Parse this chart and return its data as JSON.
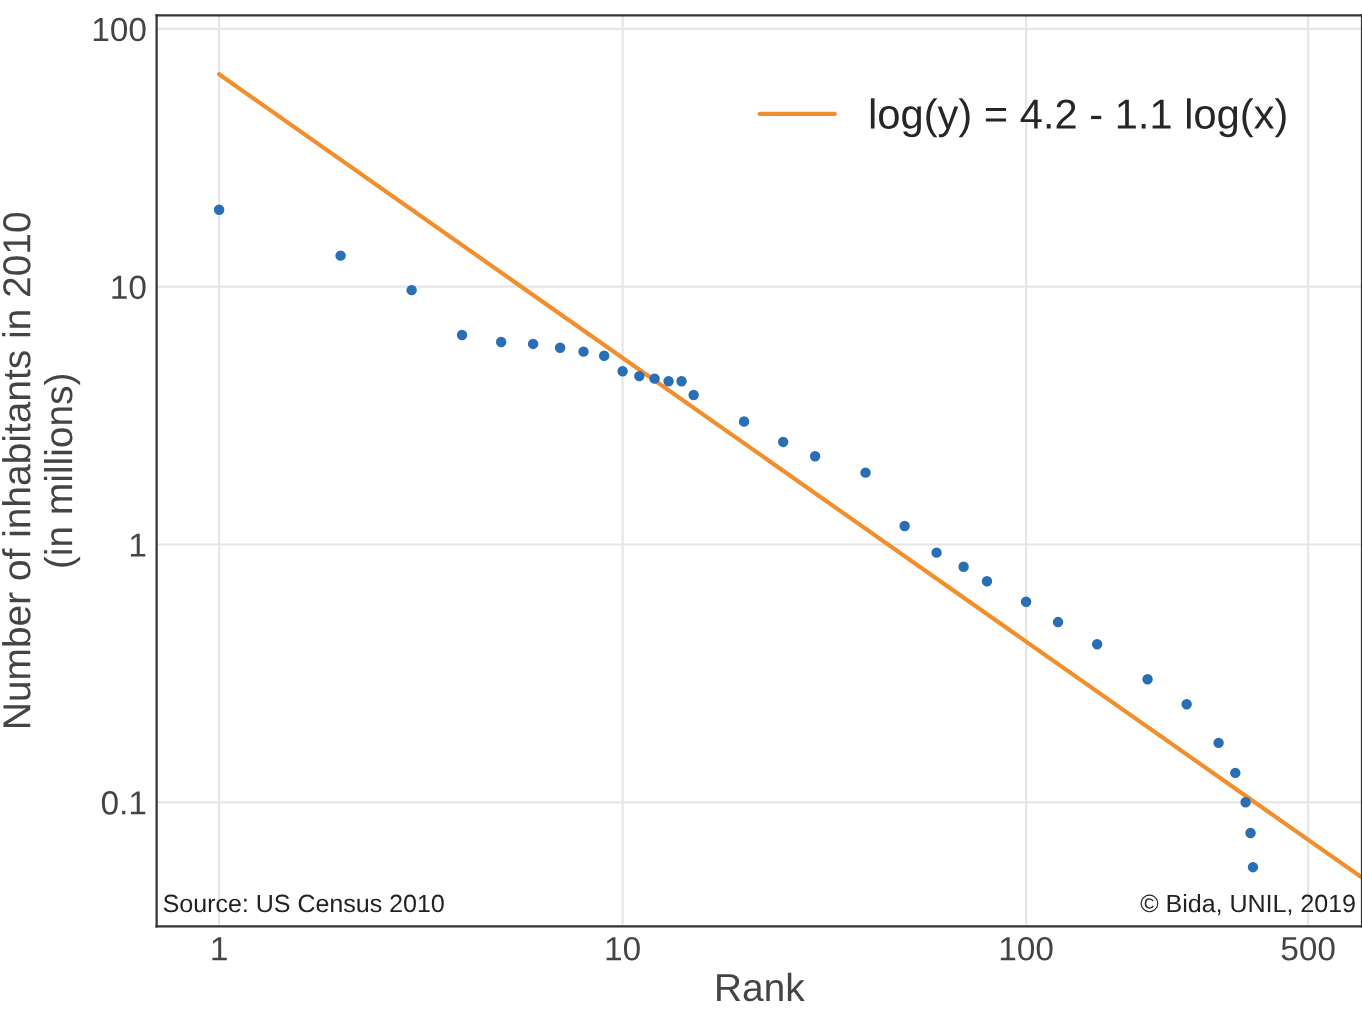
{
  "chart_data": {
    "type": "scatter",
    "xlabel": "Rank",
    "ylabel": "Number of inhabitants in 2010\n(in millions)",
    "log": "xy",
    "xlim": [
      0.7,
      680
    ],
    "ylim": [
      0.033,
      113
    ],
    "xticks": [
      1,
      10,
      100,
      500
    ],
    "yticks": [
      0.1,
      1,
      10,
      100
    ],
    "grid": true,
    "legend": "top right",
    "series": [
      {
        "color": "#2a6fb5",
        "marker": "circle",
        "x": [
          1,
          2,
          3,
          4,
          5,
          6,
          7,
          8,
          9,
          10,
          11,
          12,
          13,
          14,
          15,
          20,
          25,
          30,
          40,
          50,
          60,
          70,
          80,
          100,
          120,
          150,
          200,
          250,
          300,
          330,
          350,
          360,
          365
        ],
        "values": [
          19.9,
          13.2,
          9.7,
          6.5,
          6.1,
          6.0,
          5.8,
          5.6,
          5.4,
          4.7,
          4.5,
          4.4,
          4.3,
          4.3,
          3.8,
          3.0,
          2.5,
          2.2,
          1.9,
          1.18,
          0.93,
          0.82,
          0.72,
          0.6,
          0.5,
          0.41,
          0.3,
          0.24,
          0.17,
          0.13,
          0.1,
          0.076,
          0.056
        ]
      },
      {
        "type": "line",
        "name": "log(y) = 4.2 - 1.1 log(x)",
        "color": "#f28e2b",
        "x": [
          1,
          680
        ],
        "values": [
          66.7,
          0.051
        ]
      }
    ],
    "annotations": [
      "Source: US Census 2010",
      "© Bida, UNIL, 2019"
    ]
  }
}
